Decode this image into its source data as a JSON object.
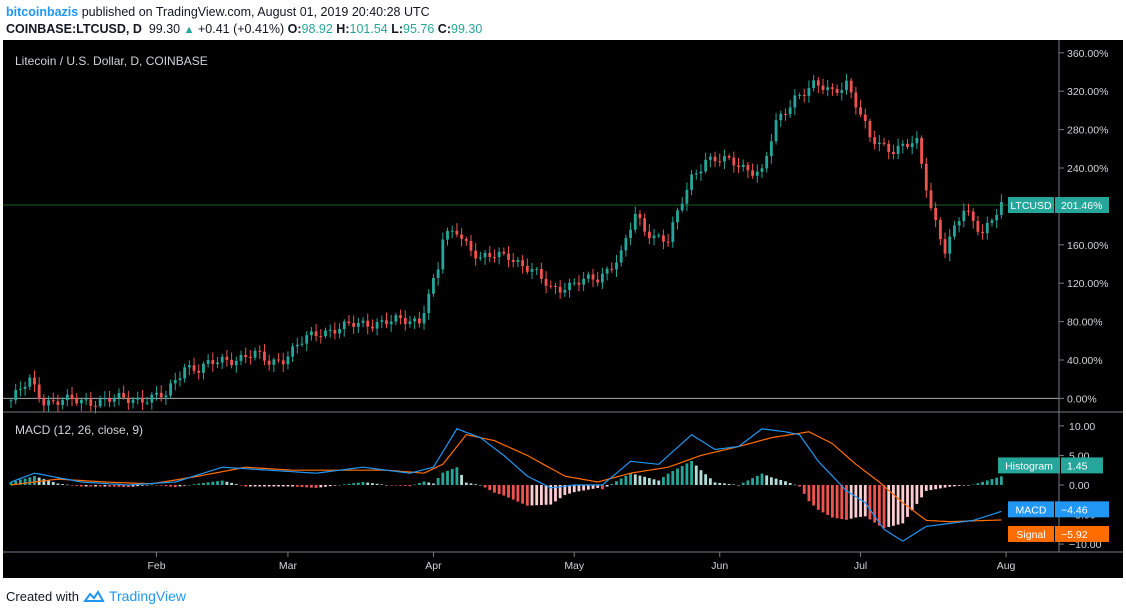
{
  "header": {
    "author": "bitcoinbazis",
    "published_text": "published on TradingView.com, August 01, 2019 20:40:28 UTC",
    "symbol": "COINBASE:LTCUSD, D",
    "last_price": "99.30",
    "change": "+0.41 (+0.41%)",
    "open_label": "O:",
    "open": "98.92",
    "high_label": "H:",
    "high": "101.54",
    "low_label": "L:",
    "low": "95.76",
    "close_label": "C:",
    "close": "99.30"
  },
  "footer": {
    "created_with": "Created with",
    "brand": "TradingView"
  },
  "colors": {
    "up": "#26a69a",
    "down": "#ef5350",
    "macd": "#2196f3",
    "signal": "#ff6d00",
    "background": "#000000"
  },
  "chart_data": [
    {
      "type": "candlestick",
      "title": "Litecoin / U.S. Dollar, D, COINBASE",
      "y_axis_labels": [
        "360.00%",
        "320.00%",
        "280.00%",
        "240.00%",
        "200.00%",
        "160.00%",
        "120.00%",
        "80.00%",
        "40.00%",
        "0.00%"
      ],
      "y_axis_values": [
        360,
        320,
        280,
        240,
        200,
        160,
        120,
        80,
        40,
        0
      ],
      "ylim": [
        -10,
        365
      ],
      "x_axis_labels": [
        "Feb",
        "Mar",
        "Apr",
        "May",
        "Jun",
        "Jul",
        "Aug"
      ],
      "x_axis_days": [
        31,
        59,
        90,
        120,
        151,
        181,
        212
      ],
      "xlim": [
        0,
        222
      ],
      "price_tag": {
        "label": "LTCUSD",
        "value": "201.46%",
        "y": 201.46
      },
      "series_key_points": {
        "x_day": [
          0,
          4,
          7,
          9,
          14,
          20,
          27,
          33,
          37,
          40,
          45,
          52,
          55,
          58,
          63,
          66,
          72,
          78,
          84,
          87,
          91,
          92,
          95,
          100,
          106,
          112,
          115,
          119,
          125,
          130,
          133,
          135,
          140,
          145,
          148,
          154,
          160,
          163,
          167,
          171,
          175,
          178,
          183,
          188,
          193,
          196,
          199,
          203,
          207,
          211
        ],
        "close_pct": [
          -2,
          18,
          -2,
          -3,
          -3,
          -2,
          0,
          2,
          35,
          30,
          40,
          45,
          38,
          42,
          62,
          70,
          75,
          80,
          80,
          82,
          135,
          165,
          175,
          145,
          150,
          128,
          115,
          118,
          125,
          150,
          190,
          175,
          165,
          230,
          250,
          245,
          235,
          285,
          315,
          325,
          320,
          330,
          270,
          260,
          265,
          200,
          155,
          195,
          175,
          200
        ],
        "unit": "% change"
      }
    },
    {
      "type": "macd",
      "title": "MACD (12, 26, close, 9)",
      "y_axis_labels": [
        "10.00",
        "5.00",
        "0.00",
        "−5.00",
        "−10.00"
      ],
      "y_axis_values": [
        10,
        5,
        0,
        -5,
        -10
      ],
      "ylim": [
        -11,
        11.5
      ],
      "histogram_tag": {
        "label": "Histogram",
        "value": "1.45"
      },
      "macd_tag": {
        "label": "MACD",
        "value": "−4.46"
      },
      "signal_tag": {
        "label": "Signal",
        "value": "−5.92"
      },
      "macd_points": {
        "x_day": [
          0,
          5,
          15,
          25,
          35,
          45,
          55,
          65,
          75,
          85,
          90,
          95,
          100,
          105,
          110,
          115,
          120,
          126,
          132,
          138,
          145,
          150,
          155,
          160,
          165,
          168,
          172,
          178,
          182,
          186,
          190,
          195,
          200,
          205,
          211
        ],
        "values": [
          0.5,
          2.0,
          0.5,
          0,
          0.5,
          3.0,
          2.5,
          2.0,
          3.0,
          2.0,
          3.0,
          9.5,
          8.0,
          5.0,
          1.5,
          -0.5,
          0,
          0,
          4.0,
          3.5,
          8.5,
          6.0,
          6.5,
          9.5,
          9.0,
          8.5,
          4.0,
          -1.0,
          -3.0,
          -7.5,
          -9.5,
          -7.0,
          -6.5,
          -6.0,
          -4.46
        ]
      },
      "signal_points": {
        "x_day": [
          0,
          10,
          20,
          30,
          40,
          50,
          60,
          70,
          80,
          88,
          92,
          97,
          103,
          110,
          118,
          125,
          132,
          140,
          147,
          155,
          162,
          170,
          175,
          180,
          185,
          190,
          195,
          200,
          211
        ],
        "values": [
          0,
          1.0,
          0.5,
          0.2,
          1.5,
          3.0,
          2.5,
          2.5,
          2.5,
          2.0,
          3.5,
          8.5,
          7.5,
          5.0,
          1.5,
          0.5,
          2.0,
          3.0,
          5.0,
          6.5,
          8.0,
          9.0,
          7.0,
          3.5,
          0.5,
          -3.0,
          -6.0,
          -6.2,
          -5.92
        ]
      }
    }
  ]
}
